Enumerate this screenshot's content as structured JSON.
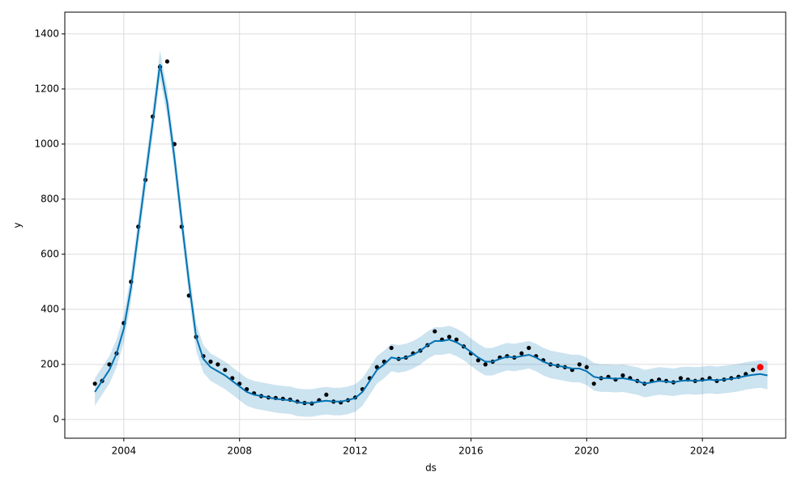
{
  "chart_data": {
    "type": "forecast",
    "x_label": "ds",
    "y_label": "y",
    "xlim": [
      2001.96,
      2026.88
    ],
    "ylim": [
      -68,
      1479
    ],
    "xticks": [
      2004,
      2008,
      2012,
      2016,
      2020,
      2024
    ],
    "yticks": [
      0,
      200,
      400,
      600,
      800,
      1000,
      1200,
      1400
    ],
    "grid": true,
    "series": [
      {
        "type": "band",
        "color": "#0072B2",
        "opacity": 0.2,
        "x": [
          2003,
          2003.25,
          2003.5,
          2003.75,
          2004,
          2004.25,
          2004.5,
          2004.75,
          2005,
          2005.25,
          2005.5,
          2005.75,
          2006,
          2006.25,
          2006.5,
          2006.75,
          2007,
          2007.25,
          2007.5,
          2007.75,
          2008,
          2008.25,
          2008.5,
          2008.75,
          2009,
          2009.25,
          2009.5,
          2009.75,
          2010,
          2010.25,
          2010.5,
          2010.75,
          2011,
          2011.25,
          2011.5,
          2011.75,
          2012,
          2012.25,
          2012.5,
          2012.75,
          2013,
          2013.25,
          2013.5,
          2013.75,
          2014,
          2014.25,
          2014.5,
          2014.75,
          2015,
          2015.25,
          2015.5,
          2015.75,
          2016,
          2016.25,
          2016.5,
          2016.75,
          2017,
          2017.25,
          2017.5,
          2017.75,
          2018,
          2018.25,
          2018.5,
          2018.75,
          2019,
          2019.25,
          2019.5,
          2019.75,
          2020,
          2020.25,
          2020.5,
          2020.75,
          2021,
          2021.25,
          2021.5,
          2021.75,
          2022,
          2022.25,
          2022.5,
          2022.75,
          2023,
          2023.25,
          2023.5,
          2023.75,
          2024,
          2024.25,
          2024.5,
          2024.75,
          2025,
          2025.25,
          2025.5,
          2025.75,
          2026,
          2026.25
        ],
        "lower": [
          50,
          90,
          130,
          190,
          280,
          430,
          630,
          830,
          1030,
          1240,
          1100,
          900,
          670,
          450,
          250,
          170,
          140,
          125,
          110,
          90,
          70,
          50,
          40,
          35,
          30,
          25,
          22,
          20,
          12,
          10,
          10,
          15,
          18,
          15,
          15,
          20,
          28,
          50,
          90,
          130,
          150,
          175,
          170,
          175,
          185,
          200,
          220,
          235,
          235,
          240,
          230,
          215,
          195,
          175,
          160,
          160,
          170,
          178,
          175,
          180,
          185,
          175,
          160,
          150,
          145,
          140,
          135,
          135,
          125,
          105,
          100,
          100,
          98,
          100,
          95,
          90,
          80,
          85,
          90,
          88,
          85,
          90,
          92,
          90,
          92,
          95,
          92,
          95,
          98,
          102,
          108,
          112,
          115,
          110
        ],
        "upper": [
          150,
          190,
          230,
          290,
          380,
          530,
          730,
          930,
          1130,
          1340,
          1200,
          1000,
          770,
          550,
          350,
          270,
          240,
          225,
          210,
          190,
          170,
          150,
          140,
          135,
          130,
          125,
          122,
          120,
          112,
          110,
          110,
          115,
          118,
          115,
          115,
          120,
          128,
          150,
          190,
          230,
          250,
          275,
          270,
          275,
          285,
          300,
          320,
          335,
          335,
          340,
          330,
          315,
          295,
          275,
          260,
          260,
          270,
          278,
          275,
          280,
          285,
          275,
          260,
          250,
          245,
          240,
          235,
          235,
          225,
          205,
          200,
          200,
          198,
          200,
          195,
          190,
          180,
          185,
          190,
          188,
          185,
          190,
          192,
          190,
          192,
          195,
          192,
          195,
          198,
          202,
          208,
          212,
          215,
          210
        ]
      },
      {
        "type": "scatter",
        "color": "#000000",
        "x": [
          2003,
          2003.25,
          2003.5,
          2003.75,
          2004,
          2004.25,
          2004.5,
          2004.75,
          2005,
          2005.25,
          2005.5,
          2005.75,
          2006,
          2006.25,
          2006.5,
          2006.75,
          2007,
          2007.25,
          2007.5,
          2007.75,
          2008,
          2008.25,
          2008.5,
          2008.75,
          2009,
          2009.25,
          2009.5,
          2009.75,
          2010,
          2010.25,
          2010.5,
          2010.75,
          2011,
          2011.25,
          2011.5,
          2011.75,
          2012,
          2012.25,
          2012.5,
          2012.75,
          2013,
          2013.25,
          2013.5,
          2013.75,
          2014,
          2014.25,
          2014.5,
          2014.75,
          2015,
          2015.25,
          2015.5,
          2015.75,
          2016,
          2016.25,
          2016.5,
          2016.75,
          2017,
          2017.25,
          2017.5,
          2017.75,
          2018,
          2018.25,
          2018.5,
          2018.75,
          2019,
          2019.25,
          2019.5,
          2019.75,
          2020,
          2020.25,
          2020.5,
          2020.75,
          2021,
          2021.25,
          2021.5,
          2021.75,
          2022,
          2022.25,
          2022.5,
          2022.75,
          2023,
          2023.25,
          2023.5,
          2023.75,
          2024,
          2024.25,
          2024.5,
          2024.75,
          2025,
          2025.25,
          2025.5,
          2025.75
        ],
        "values": [
          130,
          140,
          200,
          240,
          350,
          500,
          700,
          870,
          1100,
          1280,
          1300,
          1000,
          700,
          450,
          300,
          230,
          210,
          200,
          180,
          150,
          130,
          110,
          95,
          85,
          80,
          78,
          75,
          72,
          65,
          60,
          58,
          70,
          90,
          65,
          62,
          70,
          80,
          110,
          150,
          190,
          210,
          260,
          220,
          225,
          240,
          250,
          270,
          320,
          290,
          300,
          290,
          265,
          240,
          215,
          200,
          210,
          225,
          230,
          225,
          240,
          260,
          230,
          215,
          200,
          195,
          190,
          180,
          200,
          190,
          130,
          150,
          155,
          145,
          160,
          150,
          140,
          130,
          140,
          145,
          140,
          135,
          150,
          145,
          140,
          145,
          150,
          140,
          145,
          150,
          155,
          165,
          180
        ]
      },
      {
        "type": "line",
        "color": "#0072B2",
        "x": [
          2003,
          2003.25,
          2003.5,
          2003.75,
          2004,
          2004.25,
          2004.5,
          2004.75,
          2005,
          2005.25,
          2005.5,
          2005.75,
          2006,
          2006.25,
          2006.5,
          2006.75,
          2007,
          2007.25,
          2007.5,
          2007.75,
          2008,
          2008.25,
          2008.5,
          2008.75,
          2009,
          2009.25,
          2009.5,
          2009.75,
          2010,
          2010.25,
          2010.5,
          2010.75,
          2011,
          2011.25,
          2011.5,
          2011.75,
          2012,
          2012.25,
          2012.5,
          2012.75,
          2013,
          2013.25,
          2013.5,
          2013.75,
          2014,
          2014.25,
          2014.5,
          2014.75,
          2015,
          2015.25,
          2015.5,
          2015.75,
          2016,
          2016.25,
          2016.5,
          2016.75,
          2017,
          2017.25,
          2017.5,
          2017.75,
          2018,
          2018.25,
          2018.5,
          2018.75,
          2019,
          2019.25,
          2019.5,
          2019.75,
          2020,
          2020.25,
          2020.5,
          2020.75,
          2021,
          2021.25,
          2021.5,
          2021.75,
          2022,
          2022.25,
          2022.5,
          2022.75,
          2023,
          2023.25,
          2023.5,
          2023.75,
          2024,
          2024.25,
          2024.5,
          2024.75,
          2025,
          2025.25,
          2025.5,
          2025.75,
          2026,
          2026.25
        ],
        "values": [
          100,
          140,
          180,
          240,
          330,
          480,
          680,
          880,
          1080,
          1290,
          1150,
          950,
          720,
          500,
          300,
          220,
          190,
          175,
          160,
          140,
          120,
          100,
          90,
          85,
          80,
          75,
          72,
          70,
          62,
          60,
          60,
          65,
          68,
          65,
          65,
          70,
          78,
          100,
          140,
          180,
          200,
          225,
          220,
          225,
          235,
          250,
          270,
          285,
          285,
          290,
          280,
          265,
          245,
          225,
          210,
          210,
          220,
          228,
          225,
          230,
          235,
          225,
          210,
          200,
          195,
          190,
          185,
          185,
          175,
          155,
          150,
          150,
          148,
          150,
          145,
          140,
          130,
          135,
          140,
          138,
          135,
          140,
          142,
          140,
          142,
          145,
          142,
          145,
          148,
          152,
          158,
          162,
          165,
          160
        ]
      },
      {
        "type": "scatter",
        "color": "#ff0000",
        "x": [
          2026.0
        ],
        "values": [
          190
        ]
      }
    ]
  }
}
